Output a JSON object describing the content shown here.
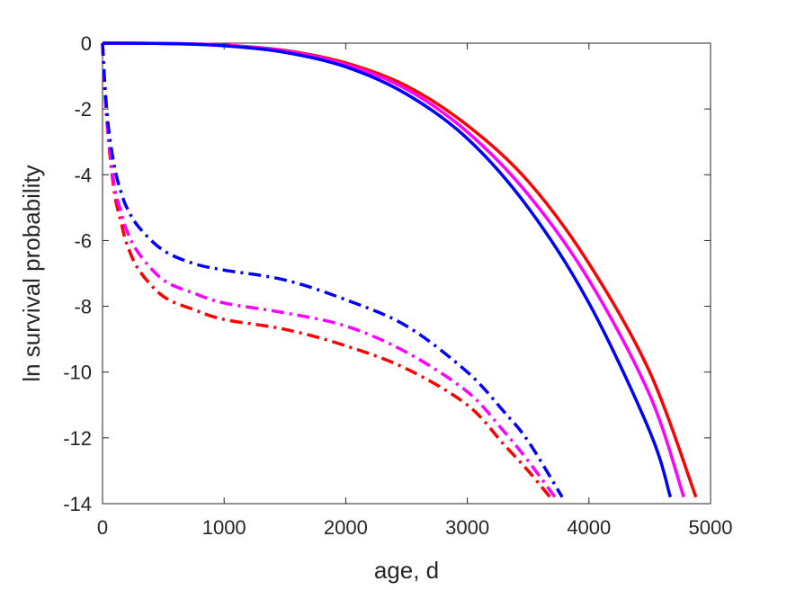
{
  "chart_data": {
    "type": "line",
    "title": "",
    "xlabel": "age, d",
    "ylabel": "ln survival probability",
    "xlim": [
      0,
      5000
    ],
    "ylim": [
      -14,
      0
    ],
    "xticks": [
      0,
      1000,
      2000,
      3000,
      4000,
      5000
    ],
    "yticks": [
      0,
      -2,
      -4,
      -6,
      -8,
      -10,
      -12,
      -14
    ],
    "grid": false,
    "legend": "none",
    "series": [
      {
        "color": "#ff0000",
        "style": "solid",
        "x": [
          0,
          500,
          1000,
          1500,
          2000,
          2500,
          3000,
          3500,
          4000,
          4500,
          4880
        ],
        "y": [
          0,
          -0.01,
          -0.06,
          -0.22,
          -0.6,
          -1.3,
          -2.5,
          -4.2,
          -6.7,
          -10.0,
          -13.8
        ]
      },
      {
        "color": "#ff00ff",
        "style": "solid",
        "x": [
          0,
          500,
          1000,
          1500,
          2000,
          2500,
          3000,
          3500,
          4000,
          4500,
          4780
        ],
        "y": [
          0,
          -0.01,
          -0.06,
          -0.24,
          -0.65,
          -1.4,
          -2.7,
          -4.6,
          -7.2,
          -10.7,
          -13.8
        ]
      },
      {
        "color": "#0000ff",
        "style": "solid",
        "x": [
          0,
          500,
          1000,
          1500,
          2000,
          2500,
          3000,
          3500,
          4000,
          4500,
          4670
        ],
        "y": [
          0,
          -0.01,
          -0.08,
          -0.28,
          -0.72,
          -1.55,
          -2.9,
          -5.0,
          -7.9,
          -11.8,
          -13.8
        ]
      },
      {
        "color": "#ff0000",
        "style": "dashdot",
        "x": [
          0,
          20,
          50,
          100,
          150,
          200,
          300,
          500,
          750,
          1000,
          1500,
          2000,
          2500,
          3000,
          3300,
          3500,
          3680
        ],
        "y": [
          0,
          -1.5,
          -3.0,
          -4.6,
          -5.4,
          -6.1,
          -6.9,
          -7.7,
          -8.1,
          -8.4,
          -8.7,
          -9.2,
          -9.9,
          -11.0,
          -12.2,
          -13.0,
          -13.8
        ]
      },
      {
        "color": "#ff00ff",
        "style": "dashdot",
        "x": [
          0,
          20,
          50,
          100,
          150,
          200,
          300,
          500,
          750,
          1000,
          1500,
          2000,
          2500,
          3000,
          3300,
          3500,
          3720
        ],
        "y": [
          0,
          -1.4,
          -2.9,
          -4.4,
          -5.1,
          -5.7,
          -6.4,
          -7.2,
          -7.6,
          -7.9,
          -8.2,
          -8.6,
          -9.4,
          -10.6,
          -11.8,
          -12.7,
          -13.8
        ]
      },
      {
        "color": "#0000ff",
        "style": "dashdot",
        "x": [
          0,
          20,
          50,
          100,
          150,
          200,
          300,
          500,
          750,
          1000,
          1500,
          2000,
          2500,
          3000,
          3300,
          3500,
          3780
        ],
        "y": [
          0,
          -1.3,
          -2.6,
          -3.8,
          -4.5,
          -5.0,
          -5.6,
          -6.3,
          -6.7,
          -6.9,
          -7.2,
          -7.8,
          -8.6,
          -10.0,
          -11.2,
          -12.1,
          -13.8
        ]
      }
    ]
  }
}
